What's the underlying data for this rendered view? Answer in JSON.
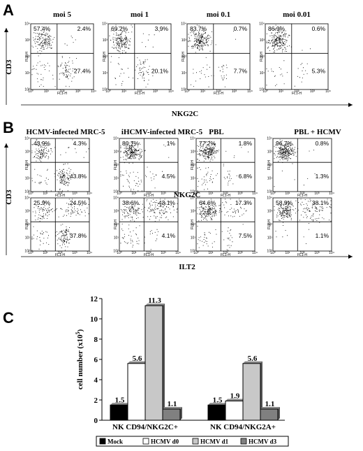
{
  "panels": {
    "a": {
      "label": "A",
      "y_axis_title": "CD3",
      "x_axis_title": "NKG2C",
      "columns": [
        {
          "title": "moi 5",
          "quadrants": {
            "ul": "57.4%",
            "ur": "2.4%",
            "lr": "27.4%"
          }
        },
        {
          "title": "moi  1",
          "quadrants": {
            "ul": "69.2%",
            "ur": "3.9%",
            "lr": "20.1%"
          }
        },
        {
          "title": "moi  0.1",
          "quadrants": {
            "ul": "83.7%",
            "ur": "0.7%",
            "lr": "7.7%"
          }
        },
        {
          "title": "moi  0.01",
          "quadrants": {
            "ul": "86.9%",
            "ur": "0.6%",
            "lr": "5.3%"
          }
        }
      ]
    },
    "b": {
      "label": "B",
      "y_axis_title": "CD3",
      "columns": [
        "HCMV-infected  MRC-5",
        "iHCMV-infected  MRC-5",
        "PBL",
        "PBL + HCMV"
      ],
      "rows": [
        {
          "x_axis_title": "NKG2C",
          "plots": [
            {
              "ul": "43.9%",
              "ur": "4.3%",
              "lr": "43.8%"
            },
            {
              "ul": "80.7%",
              "ur": "1%",
              "lr": "4.5%"
            },
            {
              "ul": "77.2%",
              "ur": "1.8%",
              "lr": "6.8%"
            },
            {
              "ul": "96.7%",
              "ur": "0.8%",
              "lr": "1.3%"
            }
          ]
        },
        {
          "x_axis_title": "ILT2",
          "plots": [
            {
              "ul": "25.9%",
              "ur": "24.5%",
              "lr": "37.8%"
            },
            {
              "ul": "38.6%",
              "ur": "43.1%",
              "lr": "4.1%"
            },
            {
              "ul": "64.6%",
              "ur": "17.3%",
              "lr": "7.5%"
            },
            {
              "ul": "58.9%",
              "ur": "38.1%",
              "lr": "1.1%"
            }
          ]
        }
      ]
    },
    "c": {
      "label": "C"
    }
  },
  "facs_axis": {
    "x_channel": "FL1-H",
    "y_channel": "FL2-H"
  },
  "chart_data": {
    "type": "bar",
    "ylabel": "cell number (x10",
    "ylabel_sup": "5",
    "ylabel_close": ")",
    "ylim": [
      0,
      12
    ],
    "yticks": [
      "0",
      "2",
      "4",
      "6",
      "8",
      "10",
      "12"
    ],
    "categories": [
      "NK CD94/NKG2C+",
      "NK CD94/NKG2A+"
    ],
    "series": [
      {
        "name": "Mock",
        "color": "#000000",
        "values": [
          1.5,
          1.5
        ],
        "labels": [
          "1.5",
          "1.5"
        ]
      },
      {
        "name": "HCMV d0",
        "color": "#ffffff",
        "values": [
          5.6,
          1.9
        ],
        "labels": [
          "5.6",
          "1.9"
        ]
      },
      {
        "name": "HCMV d1",
        "color": "#c8c8c8",
        "values": [
          11.3,
          5.6
        ],
        "labels": [
          "11.3",
          "5.6"
        ]
      },
      {
        "name": "HCMV d3",
        "color": "#808080",
        "values": [
          1.1,
          1.1
        ],
        "labels": [
          "1.1",
          "1.1"
        ]
      }
    ],
    "legend_position": "bottom"
  }
}
